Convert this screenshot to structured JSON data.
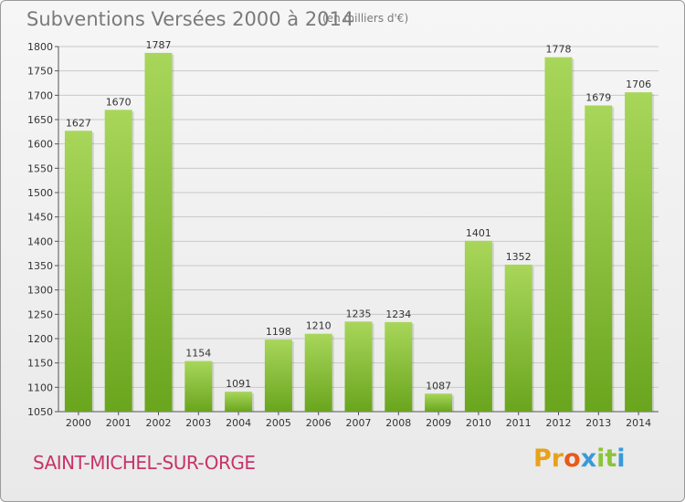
{
  "header": {
    "title": "Subventions Versées 2000 à 2014",
    "subtitle": "(en milliers d'€)"
  },
  "footer": {
    "town": "SAINT-MICHEL-SUR-ORGE",
    "logo_letters": [
      "P",
      "r",
      "o",
      "x",
      "i",
      "t",
      "i"
    ],
    "logo_colors": [
      "#e8a21a",
      "#e8a21a",
      "#e85a1a",
      "#3a9ad8",
      "#8cc43a",
      "#8cc43a",
      "#3a9ad8"
    ]
  },
  "colors": {
    "bar_light": "#a8d65a",
    "bar_dark": "#6aa51e",
    "grid": "#c8c8c8",
    "axis": "#555555"
  },
  "chart_data": {
    "type": "bar",
    "title": "Subventions Versées 2000 à 2014",
    "subtitle": "(en milliers d'€)",
    "xlabel": "",
    "ylabel": "",
    "categories": [
      "2000",
      "2001",
      "2002",
      "2003",
      "2004",
      "2005",
      "2006",
      "2007",
      "2008",
      "2009",
      "2010",
      "2011",
      "2012",
      "2013",
      "2014"
    ],
    "values": [
      1627,
      1670,
      1787,
      1154,
      1091,
      1198,
      1210,
      1235,
      1234,
      1087,
      1401,
      1352,
      1778,
      1679,
      1706
    ],
    "ylim": [
      1050,
      1800
    ],
    "yticks": [
      1050,
      1100,
      1150,
      1200,
      1250,
      1300,
      1350,
      1400,
      1450,
      1500,
      1550,
      1600,
      1650,
      1700,
      1750,
      1800
    ],
    "grid": true,
    "data_labels": true
  }
}
